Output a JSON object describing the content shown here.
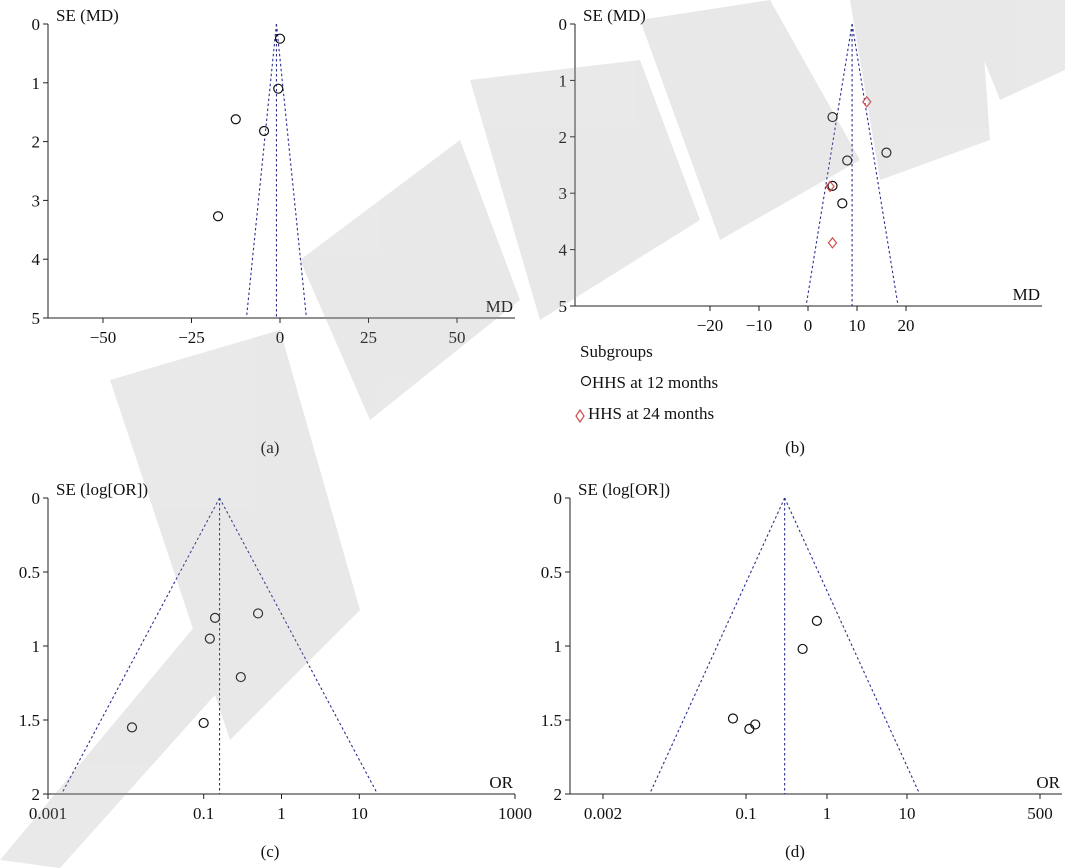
{
  "watermark": "RETRACTED",
  "chart_data": [
    {
      "panel": "(a)",
      "type": "scatter",
      "ylabel": "SE (MD)",
      "xlabel": "MD",
      "xlim": [
        -62,
        62
      ],
      "ylim": [
        0,
        5
      ],
      "y_inverted": true,
      "xticks": [
        -50,
        -25,
        0,
        25,
        50
      ],
      "yticks": [
        0,
        1,
        2,
        3,
        4,
        5
      ],
      "xtick_labels": [
        "−50",
        "−25",
        "0",
        "25",
        "50"
      ],
      "ytick_labels": [
        "0",
        "1",
        "2",
        "3",
        "4",
        "5"
      ],
      "pooled_estimate": -1,
      "funnel_apex_se": 0,
      "funnel_base_se": 5,
      "points": [
        {
          "x": 0,
          "y": 0.25
        },
        {
          "x": -0.5,
          "y": 1.1
        },
        {
          "x": -12.5,
          "y": 1.62
        },
        {
          "x": -4.5,
          "y": 1.82
        },
        {
          "x": -17.5,
          "y": 3.27
        }
      ]
    },
    {
      "panel": "(b)",
      "type": "scatter",
      "ylabel": "SE (MD)",
      "xlabel": "MD",
      "xlim": [
        -43,
        43
      ],
      "ylim": [
        0,
        5
      ],
      "y_inverted": true,
      "xticks": [
        -20,
        -10,
        0,
        10,
        20
      ],
      "yticks": [
        0,
        1,
        2,
        3,
        4,
        5
      ],
      "xtick_labels": [
        "−20",
        "−10",
        "0",
        "10",
        "20"
      ],
      "ytick_labels": [
        "0",
        "1",
        "2",
        "3",
        "4",
        "5"
      ],
      "pooled_estimate": 9,
      "funnel_apex_se": 0,
      "funnel_base_se": 5,
      "legend_title": "Subgroups",
      "legend": [
        "HHS at 12 months",
        "HHS at 24 months"
      ],
      "series": [
        {
          "name": "HHS at 12 months",
          "marker": "circle",
          "color": "#111111",
          "points": [
            {
              "x": 5,
              "y": 1.65
            },
            {
              "x": 8,
              "y": 2.42
            },
            {
              "x": 16,
              "y": 2.28
            },
            {
              "x": 5,
              "y": 2.87
            },
            {
              "x": 7,
              "y": 3.18
            }
          ]
        },
        {
          "name": "HHS at 24 months",
          "marker": "diamond",
          "color": "#d24a4a",
          "points": [
            {
              "x": 12,
              "y": 1.38
            },
            {
              "x": 4.5,
              "y": 2.88
            },
            {
              "x": 5,
              "y": 3.88
            }
          ]
        }
      ]
    },
    {
      "panel": "(c)",
      "type": "scatter",
      "ylabel": "SE (log[OR])",
      "xlabel": "OR",
      "x_scale": "log",
      "xlim": [
        0.001,
        1000
      ],
      "ylim": [
        0,
        2
      ],
      "y_inverted": true,
      "xticks": [
        0.001,
        0.1,
        1,
        10,
        1000
      ],
      "yticks": [
        0,
        0.5,
        1,
        1.5,
        2
      ],
      "xtick_labels": [
        "0.001",
        "0.1",
        "1",
        "10",
        "1000"
      ],
      "ytick_labels": [
        "0",
        "0.5",
        "1",
        "1.5",
        "2"
      ],
      "pooled_estimate": 0.16,
      "funnel_apex_se": 0,
      "funnel_base_se": 2,
      "points": [
        {
          "x": 0.14,
          "y": 0.81
        },
        {
          "x": 0.5,
          "y": 0.78
        },
        {
          "x": 0.12,
          "y": 0.95
        },
        {
          "x": 0.3,
          "y": 1.21
        },
        {
          "x": 0.1,
          "y": 1.52
        },
        {
          "x": 0.012,
          "y": 1.55
        }
      ]
    },
    {
      "panel": "(d)",
      "type": "scatter",
      "ylabel": "SE (log[OR])",
      "xlabel": "OR",
      "x_scale": "log",
      "xlim": [
        0.001,
        1000
      ],
      "ylim": [
        0,
        2
      ],
      "y_inverted": true,
      "xticks": [
        0.002,
        0.1,
        1,
        10,
        500
      ],
      "yticks": [
        0,
        0.5,
        1,
        1.5,
        2
      ],
      "xtick_labels": [
        "0.002",
        "0.1",
        "1",
        "10",
        "500"
      ],
      "ytick_labels": [
        "0",
        "0.5",
        "1",
        "1.5",
        "2"
      ],
      "pooled_estimate": 0.3,
      "funnel_apex_se": 0,
      "funnel_base_se": 2,
      "points": [
        {
          "x": 0.75,
          "y": 0.83
        },
        {
          "x": 0.5,
          "y": 1.02
        },
        {
          "x": 0.07,
          "y": 1.49
        },
        {
          "x": 0.11,
          "y": 1.56
        },
        {
          "x": 0.13,
          "y": 1.53
        }
      ]
    }
  ]
}
